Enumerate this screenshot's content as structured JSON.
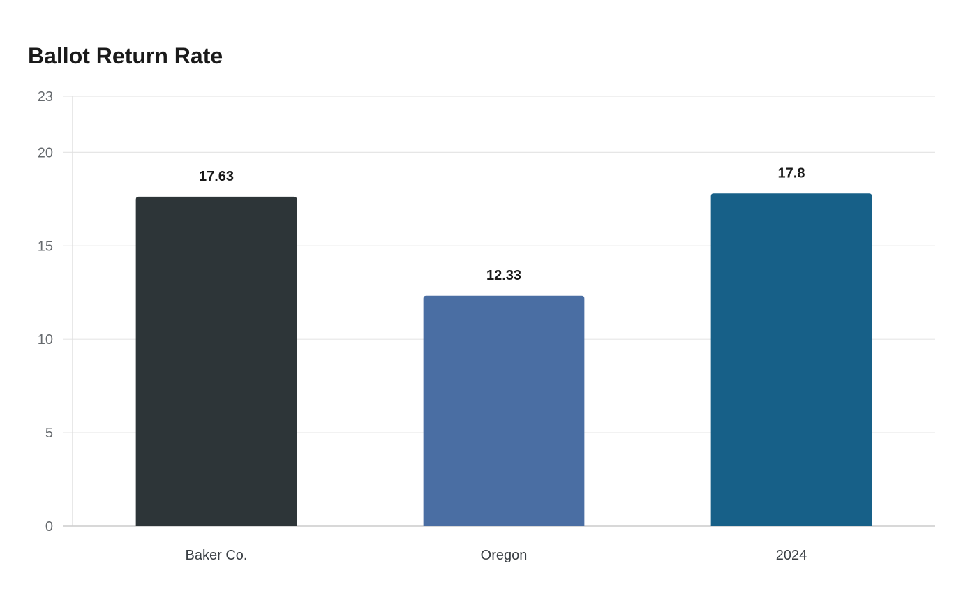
{
  "chart_data": {
    "type": "bar",
    "title": "Ballot Return Rate",
    "xlabel": "",
    "ylabel": "",
    "categories": [
      "Baker Co.",
      "Oregon",
      "2024"
    ],
    "values": [
      17.63,
      12.33,
      17.8
    ],
    "value_labels": [
      "17.63",
      "12.33",
      "17.8"
    ],
    "colors": [
      "#2d3538",
      "#4a6ea3",
      "#176088"
    ],
    "ylim": [
      0,
      23
    ],
    "yticks": [
      0,
      5,
      10,
      15,
      20,
      23
    ],
    "ytick_labels": [
      "0",
      "5",
      "10",
      "15",
      "20",
      "23"
    ],
    "grid": true,
    "legend": "none"
  }
}
